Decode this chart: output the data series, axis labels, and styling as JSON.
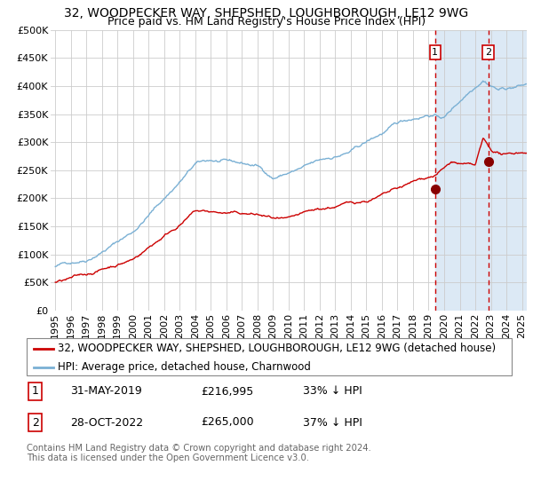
{
  "title": "32, WOODPECKER WAY, SHEPSHED, LOUGHBOROUGH, LE12 9WG",
  "subtitle": "Price paid vs. HM Land Registry's House Price Index (HPI)",
  "ylim": [
    0,
    500000
  ],
  "yticks": [
    0,
    50000,
    100000,
    150000,
    200000,
    250000,
    300000,
    350000,
    400000,
    450000,
    500000
  ],
  "ytick_labels": [
    "£0",
    "£50K",
    "£100K",
    "£150K",
    "£200K",
    "£250K",
    "£300K",
    "£350K",
    "£400K",
    "£450K",
    "£500K"
  ],
  "xlim_start": 1994.7,
  "xlim_end": 2025.3,
  "xticks": [
    1995,
    1996,
    1997,
    1998,
    1999,
    2000,
    2001,
    2002,
    2003,
    2004,
    2005,
    2006,
    2007,
    2008,
    2009,
    2010,
    2011,
    2012,
    2013,
    2014,
    2015,
    2016,
    2017,
    2018,
    2019,
    2020,
    2021,
    2022,
    2023,
    2024,
    2025
  ],
  "sale1_x": 2019.417,
  "sale1_y": 216995,
  "sale1_label": "1",
  "sale1_date": "31-MAY-2019",
  "sale1_price": "£216,995",
  "sale1_hpi": "33% ↓ HPI",
  "sale2_x": 2022.833,
  "sale2_y": 265000,
  "sale2_label": "2",
  "sale2_date": "28-OCT-2022",
  "sale2_price": "£265,000",
  "sale2_hpi": "37% ↓ HPI",
  "shade_start": 2019.417,
  "shade_color": "#dce9f5",
  "red_line_color": "#cc0000",
  "blue_line_color": "#7ab0d4",
  "grid_color": "#cccccc",
  "legend_label_red": "32, WOODPECKER WAY, SHEPSHED, LOUGHBOROUGH, LE12 9WG (detached house)",
  "legend_label_blue": "HPI: Average price, detached house, Charnwood",
  "footer_text": "Contains HM Land Registry data © Crown copyright and database right 2024.\nThis data is licensed under the Open Government Licence v3.0.",
  "title_fontsize": 10,
  "subtitle_fontsize": 9,
  "tick_fontsize": 8,
  "legend_fontsize": 8.5
}
